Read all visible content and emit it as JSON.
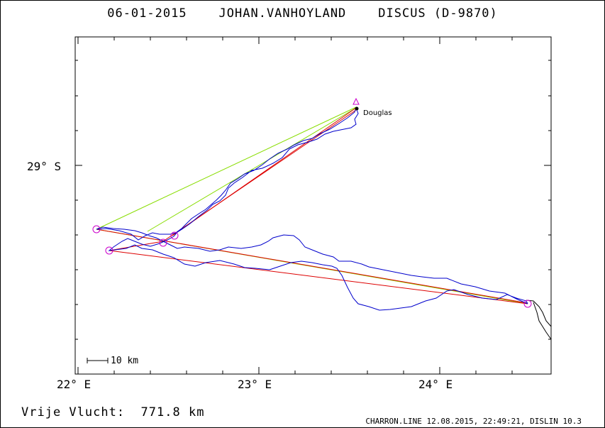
{
  "header": {
    "date": "06-01-2015",
    "pilot": "JOHAN.VANHOYLAND",
    "glider": "DISCUS (D-9870)"
  },
  "axes": {
    "lat_label": "29° S",
    "lon_labels": [
      "22° E",
      "23° E",
      "24° E"
    ]
  },
  "scale_bar_label": "10 km",
  "place_name": "Douglas",
  "footer": {
    "distance_label": "Vrije Vlucht:",
    "distance_value": "771.8 km",
    "credit": "CHARRON.LINE 12.08.2015, 22:49:21, DISLIN 10.3"
  },
  "colors": {
    "track": "#0000cc",
    "task_line": "#dd0000",
    "leg_line": "#88dd00",
    "turnpoint": "#cc00cc",
    "coast": "#000000"
  }
}
